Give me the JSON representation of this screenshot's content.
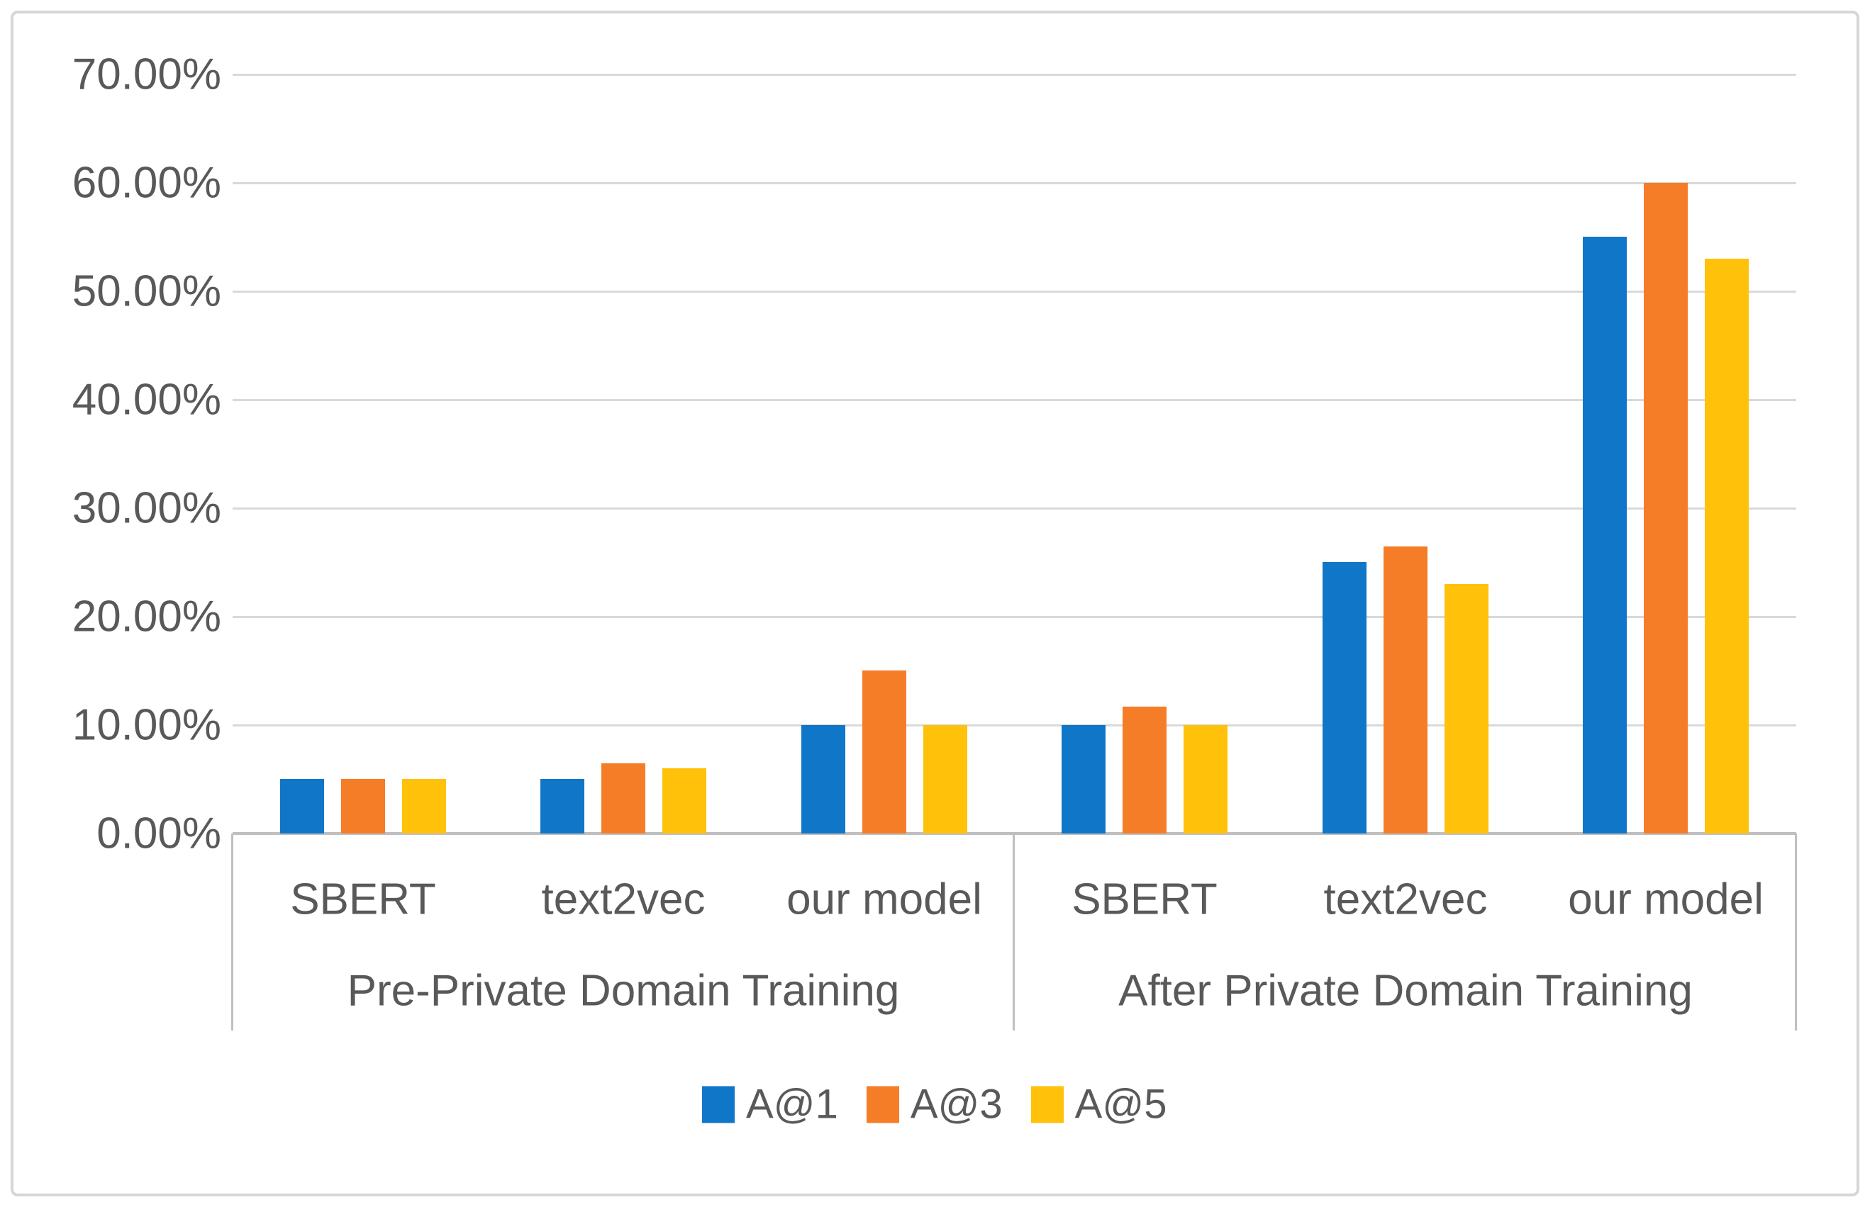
{
  "chart_data": {
    "type": "bar",
    "title": "",
    "unit": "percent",
    "grid": true,
    "y_axis": {
      "min": 0,
      "max": 70,
      "step": 10,
      "tick_labels": [
        "70.00%",
        "60.00%",
        "50.00%",
        "40.00%",
        "30.00%",
        "20.00%",
        "10.00%",
        "0.00%"
      ]
    },
    "group_labels": [
      "Pre-Private Domain Training",
      "After Private Domain Training"
    ],
    "categories": [
      "SBERT",
      "text2vec",
      "our model",
      "SBERT",
      "text2vec",
      "our model"
    ],
    "series": [
      {
        "name": "A@1",
        "color": "#1076C8",
        "values": [
          5,
          5,
          10,
          10,
          25,
          55
        ]
      },
      {
        "name": "A@3",
        "color": "#F57D28",
        "values": [
          5,
          6.5,
          15,
          11.7,
          26.5,
          60
        ]
      },
      {
        "name": "A@5",
        "color": "#FFC10A",
        "values": [
          5,
          6,
          10,
          10,
          23,
          53
        ]
      }
    ],
    "legend": {
      "position": "bottom",
      "entries": [
        "A@1",
        "A@3",
        "A@5"
      ]
    }
  },
  "colors": {
    "gridline": "#D9D9D9",
    "axis_line": "#BFBFBF",
    "text": "#595959",
    "frame_border": "#D6D6D6",
    "background": "#FFFFFF"
  }
}
